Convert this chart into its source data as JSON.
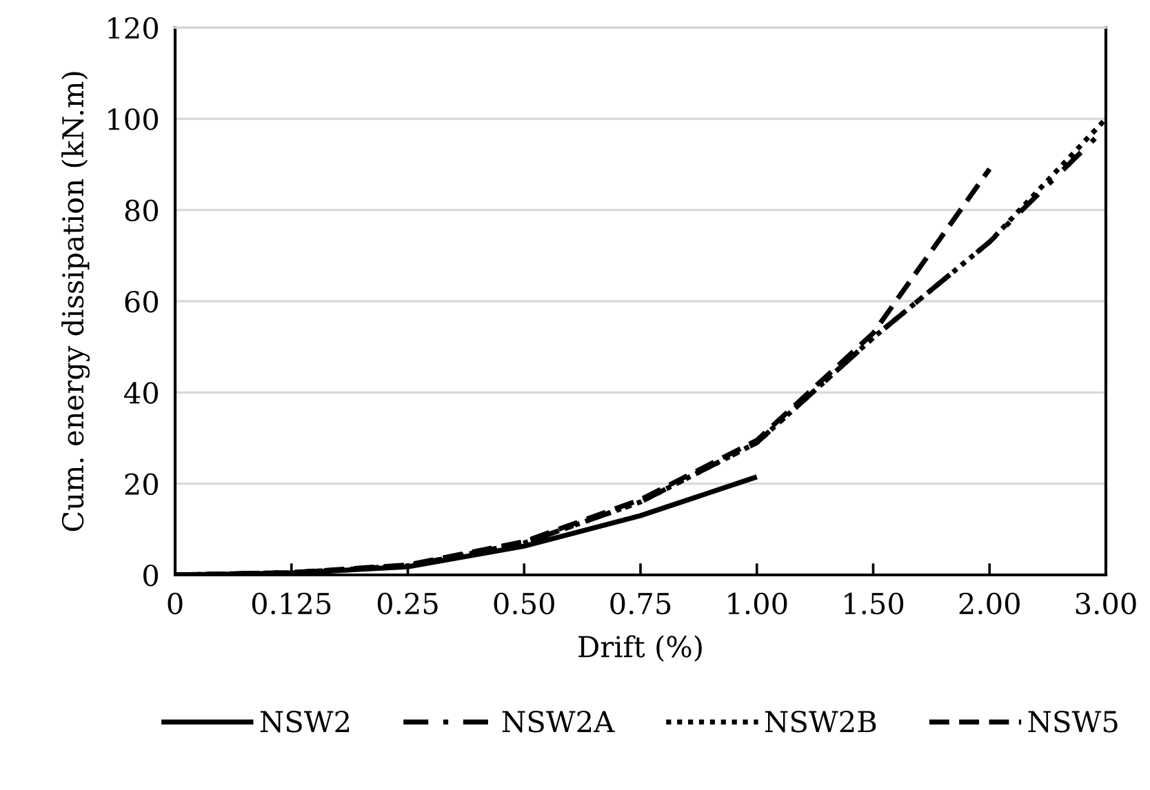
{
  "chart_data": {
    "type": "line",
    "xlabel": "Drift (%)",
    "ylabel": "Cum. energy dissipation (kN.m)",
    "categories": [
      "0",
      "0.125",
      "0.25",
      "0.50",
      "0.75",
      "1.00",
      "1.50",
      "2.00",
      "3.00"
    ],
    "series": [
      {
        "name": "NSW2",
        "color": "#000000",
        "line_style": "solid",
        "values": [
          0,
          0.4,
          1.8,
          6.3,
          13,
          21.5,
          null,
          null,
          null
        ]
      },
      {
        "name": "NSW2A",
        "color": "#000000",
        "line_style": "dashdot",
        "values": [
          0,
          0.5,
          2,
          7,
          16,
          29,
          52,
          73,
          98
        ]
      },
      {
        "name": "NSW2B",
        "color": "#000000",
        "line_style": "dotted",
        "values": [
          0,
          0.5,
          2,
          7,
          16,
          29,
          52,
          73,
          100
        ]
      },
      {
        "name": "NSW5",
        "color": "#000000",
        "line_style": "dashed",
        "values": [
          0,
          0.5,
          2.2,
          7.3,
          16.5,
          29.5,
          53,
          89,
          null
        ]
      }
    ],
    "ylim": [
      0,
      120
    ],
    "yticks": [
      0,
      20,
      40,
      60,
      80,
      100,
      120
    ],
    "grid": "y",
    "legend": "bottom",
    "marker": "none"
  }
}
